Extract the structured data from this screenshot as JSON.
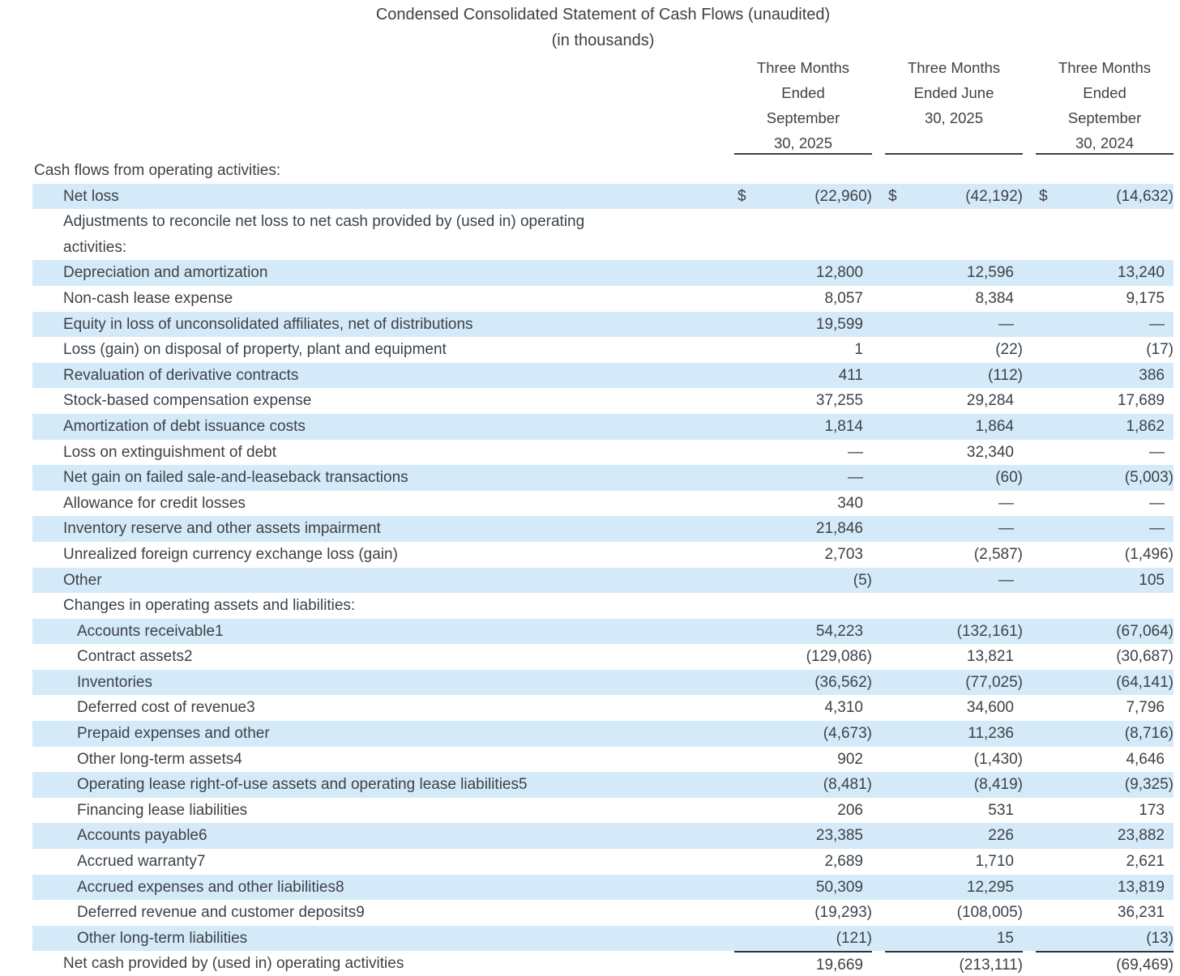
{
  "title": "Condensed Consolidated Statement of Cash Flows (unaudited)",
  "subtitle": "(in thousands)",
  "currency_symbol": "$",
  "colors": {
    "row_highlight": "#d5eaf8",
    "text": "#3d4247",
    "rule": "#2d3237"
  },
  "columns": [
    {
      "lines": [
        "Three Months",
        "Ended",
        "September",
        "30, 2025"
      ]
    },
    {
      "lines": [
        "Three Months",
        "Ended June",
        "30, 2025"
      ]
    },
    {
      "lines": [
        "Three Months",
        "Ended",
        "September",
        "30, 2024"
      ]
    }
  ],
  "rows": [
    {
      "label": "Cash flows from operating activities:",
      "indent": 0,
      "shaded": false,
      "values": null
    },
    {
      "label": "Net loss",
      "indent": 1,
      "shaded": true,
      "dollar": true,
      "values": [
        "(22,960)",
        "(42,192)",
        "(14,632)"
      ]
    },
    {
      "label": "Adjustments to reconcile net loss to net cash provided by (used in) operating activities:",
      "indent": 1,
      "shaded": false,
      "wrap": true,
      "values": null
    },
    {
      "label": "Depreciation and amortization",
      "indent": 1,
      "shaded": true,
      "values": [
        "12,800",
        "12,596",
        "13,240"
      ]
    },
    {
      "label": "Non-cash lease expense",
      "indent": 1,
      "shaded": false,
      "values": [
        "8,057",
        "8,384",
        "9,175"
      ]
    },
    {
      "label": "Equity in loss of unconsolidated affiliates, net of distributions",
      "indent": 1,
      "shaded": true,
      "values": [
        "19,599",
        "—",
        "—"
      ]
    },
    {
      "label": "Loss (gain) on disposal of property, plant and equipment",
      "indent": 1,
      "shaded": false,
      "values": [
        "1",
        "(22)",
        "(17)"
      ]
    },
    {
      "label": "Revaluation of derivative contracts",
      "indent": 1,
      "shaded": true,
      "values": [
        "411",
        "(112)",
        "386"
      ]
    },
    {
      "label": "Stock-based compensation expense",
      "indent": 1,
      "shaded": false,
      "values": [
        "37,255",
        "29,284",
        "17,689"
      ]
    },
    {
      "label": "Amortization of debt issuance costs",
      "indent": 1,
      "shaded": true,
      "values": [
        "1,814",
        "1,864",
        "1,862"
      ]
    },
    {
      "label": "Loss on extinguishment of debt",
      "indent": 1,
      "shaded": false,
      "values": [
        "—",
        "32,340",
        "—"
      ]
    },
    {
      "label": "Net gain on failed sale-and-leaseback transactions",
      "indent": 1,
      "shaded": true,
      "values": [
        "—",
        "(60)",
        "(5,003)"
      ]
    },
    {
      "label": "Allowance for credit losses",
      "indent": 1,
      "shaded": false,
      "values": [
        "340",
        "—",
        "—"
      ]
    },
    {
      "label": "Inventory reserve and other assets impairment",
      "indent": 1,
      "shaded": true,
      "values": [
        "21,846",
        "—",
        "—"
      ]
    },
    {
      "label": "Unrealized foreign currency exchange loss (gain)",
      "indent": 1,
      "shaded": false,
      "values": [
        "2,703",
        "(2,587)",
        "(1,496)"
      ]
    },
    {
      "label": "Other",
      "indent": 1,
      "shaded": true,
      "values": [
        "(5)",
        "—",
        "105"
      ]
    },
    {
      "label": "Changes in operating assets and liabilities:",
      "indent": 1,
      "shaded": false,
      "values": null
    },
    {
      "label": "Accounts receivable1",
      "indent": 2,
      "shaded": true,
      "values": [
        "54,223",
        "(132,161)",
        "(67,064)"
      ]
    },
    {
      "label": "Contract assets2",
      "indent": 2,
      "shaded": false,
      "values": [
        "(129,086)",
        "13,821",
        "(30,687)"
      ]
    },
    {
      "label": "Inventories",
      "indent": 2,
      "shaded": true,
      "values": [
        "(36,562)",
        "(77,025)",
        "(64,141)"
      ]
    },
    {
      "label": "Deferred cost of revenue3",
      "indent": 2,
      "shaded": false,
      "values": [
        "4,310",
        "34,600",
        "7,796"
      ]
    },
    {
      "label": "Prepaid expenses and other",
      "indent": 2,
      "shaded": true,
      "values": [
        "(4,673)",
        "11,236",
        "(8,716)"
      ]
    },
    {
      "label": "Other long-term assets4",
      "indent": 2,
      "shaded": false,
      "values": [
        "902",
        "(1,430)",
        "4,646"
      ]
    },
    {
      "label": "Operating lease right-of-use assets and operating lease liabilities5",
      "indent": 2,
      "shaded": true,
      "values": [
        "(8,481)",
        "(8,419)",
        "(9,325)"
      ]
    },
    {
      "label": "Financing lease liabilities",
      "indent": 2,
      "shaded": false,
      "values": [
        "206",
        "531",
        "173"
      ]
    },
    {
      "label": "Accounts payable6",
      "indent": 2,
      "shaded": true,
      "values": [
        "23,385",
        "226",
        "23,882"
      ]
    },
    {
      "label": "Accrued warranty7",
      "indent": 2,
      "shaded": false,
      "values": [
        "2,689",
        "1,710",
        "2,621"
      ]
    },
    {
      "label": "Accrued expenses and other liabilities8",
      "indent": 2,
      "shaded": true,
      "values": [
        "50,309",
        "12,295",
        "13,819"
      ]
    },
    {
      "label": "Deferred revenue and customer deposits9",
      "indent": 2,
      "shaded": false,
      "values": [
        "(19,293)",
        "(108,005)",
        "36,231"
      ]
    },
    {
      "label": "Other long-term liabilities",
      "indent": 2,
      "shaded": true,
      "values": [
        "(121)",
        "15",
        "(13)"
      ]
    },
    {
      "label": "Net cash provided by (used in) operating activities",
      "indent": 1,
      "shaded": false,
      "total": true,
      "values": [
        "19,669",
        "(213,111)",
        "(69,469)"
      ]
    }
  ]
}
